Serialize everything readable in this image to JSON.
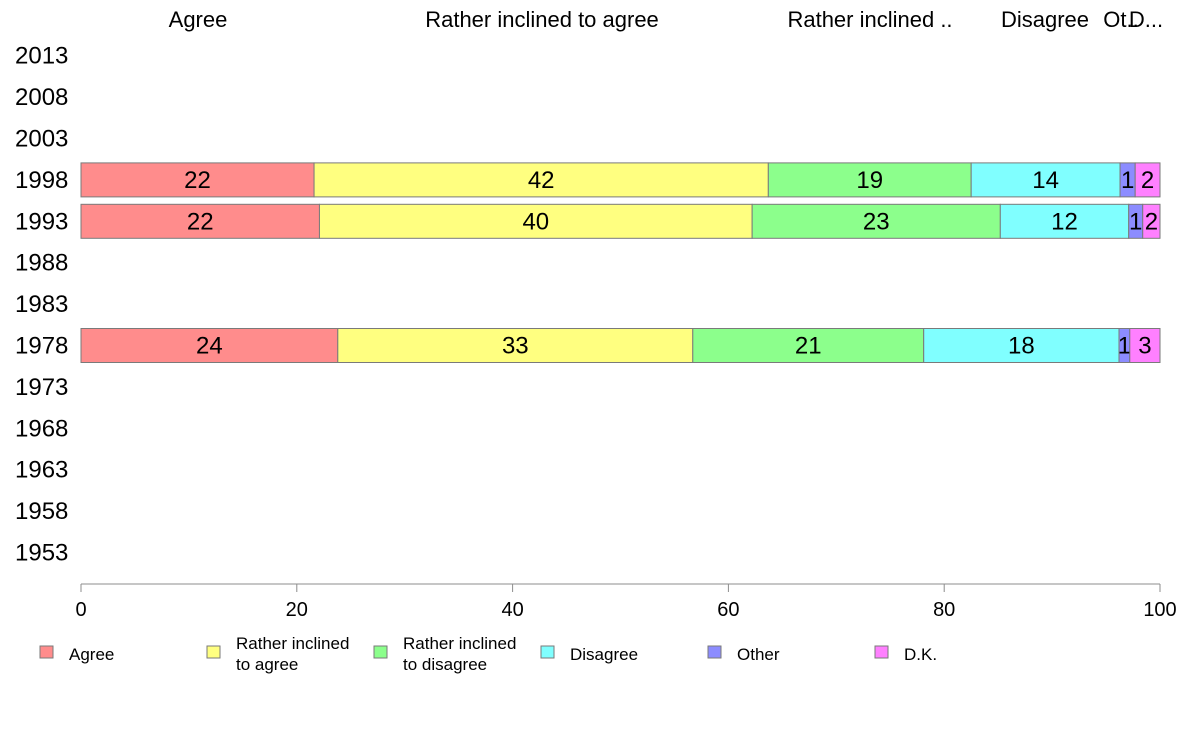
{
  "chart_data": {
    "type": "bar",
    "orientation": "horizontal",
    "stacked": true,
    "categories": [
      "2013",
      "2008",
      "2003",
      "1998",
      "1993",
      "1988",
      "1983",
      "1978",
      "1973",
      "1968",
      "1963",
      "1958",
      "1953"
    ],
    "header_labels": [
      "Agree",
      "Rather inclined to agree",
      "Rather inclined ..",
      "Disagree",
      "Ot..",
      "D..."
    ],
    "series": [
      {
        "name": "Agree",
        "legend_label": "Agree",
        "color": "#ff8c8c",
        "values": [
          null,
          null,
          null,
          21.6,
          22.1,
          null,
          null,
          23.8,
          null,
          null,
          null,
          null,
          null
        ],
        "labels": [
          null,
          null,
          null,
          "22",
          "22",
          null,
          null,
          "24",
          null,
          null,
          null,
          null,
          null
        ]
      },
      {
        "name": "Rather inclined to agree",
        "legend_label": "Rather inclined\nto agree",
        "color": "#ffff80",
        "values": [
          null,
          null,
          null,
          42.1,
          40.1,
          null,
          null,
          32.9,
          null,
          null,
          null,
          null,
          null
        ],
        "labels": [
          null,
          null,
          null,
          "42",
          "40",
          null,
          null,
          "33",
          null,
          null,
          null,
          null,
          null
        ]
      },
      {
        "name": "Rather inclined to disagree",
        "legend_label": "Rather inclined\nto disagree",
        "color": "#8cff8c",
        "values": [
          null,
          null,
          null,
          18.8,
          23.0,
          null,
          null,
          21.4,
          null,
          null,
          null,
          null,
          null
        ],
        "labels": [
          null,
          null,
          null,
          "19",
          "23",
          null,
          null,
          "21",
          null,
          null,
          null,
          null,
          null
        ]
      },
      {
        "name": "Disagree",
        "legend_label": "Disagree",
        "color": "#80ffff",
        "values": [
          null,
          null,
          null,
          13.8,
          11.9,
          null,
          null,
          18.1,
          null,
          null,
          null,
          null,
          null
        ],
        "labels": [
          null,
          null,
          null,
          "14",
          "12",
          null,
          null,
          "18",
          null,
          null,
          null,
          null,
          null
        ]
      },
      {
        "name": "Other",
        "legend_label": "Other",
        "color": "#8c8cff",
        "values": [
          null,
          null,
          null,
          1.4,
          1.3,
          null,
          null,
          1.0,
          null,
          null,
          null,
          null,
          null
        ],
        "labels": [
          null,
          null,
          null,
          "1",
          "1",
          null,
          null,
          "1",
          null,
          null,
          null,
          null,
          null
        ]
      },
      {
        "name": "D.K.",
        "legend_label": "D.K.",
        "color": "#ff80ff",
        "values": [
          null,
          null,
          null,
          2.3,
          1.6,
          null,
          null,
          2.8,
          null,
          null,
          null,
          null,
          null
        ],
        "labels": [
          null,
          null,
          null,
          "2",
          "2",
          null,
          null,
          "3",
          null,
          null,
          null,
          null,
          null
        ]
      }
    ],
    "xlim": [
      0,
      100
    ],
    "xticks": [
      0,
      20,
      40,
      60,
      80,
      100
    ],
    "xlabel": "",
    "ylabel": "",
    "grid": false,
    "legend": "bottom"
  }
}
